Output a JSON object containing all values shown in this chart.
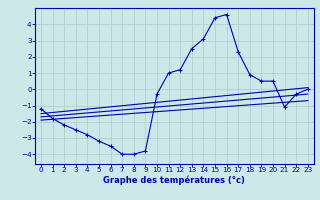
{
  "xlabel": "Graphe des températures (°c)",
  "bg_color": "#cce8e8",
  "line_color": "#0000aa",
  "grid_color": "#aacccc",
  "xlim": [
    -0.5,
    23.5
  ],
  "ylim": [
    -4.6,
    5.0
  ],
  "yticks": [
    -4,
    -3,
    -2,
    -1,
    0,
    1,
    2,
    3,
    4
  ],
  "xticks": [
    0,
    1,
    2,
    3,
    4,
    5,
    6,
    7,
    8,
    9,
    10,
    11,
    12,
    13,
    14,
    15,
    16,
    17,
    18,
    19,
    20,
    21,
    22,
    23
  ],
  "main_curve_x": [
    0,
    1,
    2,
    3,
    4,
    5,
    6,
    7,
    8,
    9,
    10,
    11,
    12,
    13,
    14,
    15,
    16,
    17,
    18,
    19,
    20,
    21,
    22,
    23
  ],
  "main_curve_y": [
    -1.2,
    -1.8,
    -2.2,
    -2.5,
    -2.8,
    -3.2,
    -3.5,
    -4.0,
    -4.0,
    -3.8,
    -0.3,
    1.0,
    1.2,
    2.5,
    3.1,
    4.4,
    4.6,
    2.3,
    0.9,
    0.5,
    0.5,
    -1.1,
    -0.3,
    0.0
  ],
  "line1_x": [
    0,
    23
  ],
  "line1_y": [
    -1.5,
    0.1
  ],
  "line2_x": [
    0,
    23
  ],
  "line2_y": [
    -1.7,
    -0.3
  ],
  "line3_x": [
    0,
    23
  ],
  "line3_y": [
    -1.9,
    -0.7
  ],
  "xlabel_fontsize": 6.0,
  "tick_fontsize": 5.2
}
